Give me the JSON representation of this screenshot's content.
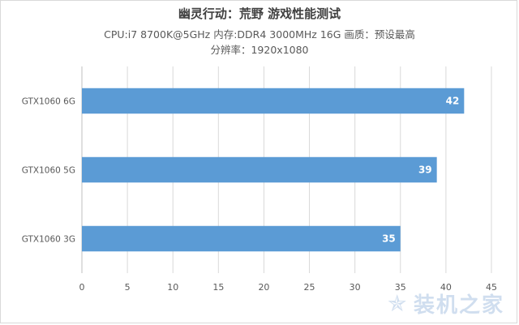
{
  "chart_data": {
    "type": "bar",
    "orientation": "horizontal",
    "title": "幽灵行动：荒野 游戏性能测试",
    "subtitle_lines": [
      "CPU:i7 8700K@5GHz   内存:DDR4 3000MHz 16G   画质：预设最高",
      "分辨率：1920x1080"
    ],
    "categories": [
      "GTX1060 6G",
      "GTX1060 5G",
      "GTX1060 3G"
    ],
    "values": [
      42,
      39,
      35
    ],
    "xlim": [
      0,
      45
    ],
    "xticks": [
      0,
      5,
      10,
      15,
      20,
      25,
      30,
      35,
      40,
      45
    ],
    "xlabel": "",
    "ylabel": "",
    "grid": "vertical",
    "legend": "none",
    "bar_color": "#5b9bd5",
    "data_label_color": "#ffffff"
  },
  "watermark": {
    "text": "装机之家",
    "icon": "star-icon"
  }
}
